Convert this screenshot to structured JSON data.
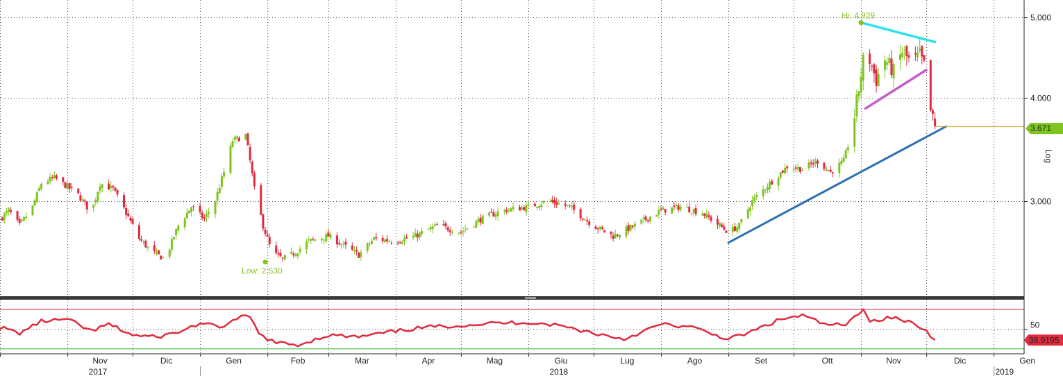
{
  "colors": {
    "up": "#7ec51f",
    "down": "#e02a3e",
    "grid": "#444444",
    "separator": "#3a3a3a",
    "flag_top": "#2fe0f0",
    "flag_bottom": "#c45cc8",
    "trendline": "#2d6fb3",
    "last_line": "#e0a030",
    "rsi": "#e02a3e",
    "rsi_upper": "#e02a3e",
    "rsi_lower": "#2fbf2f",
    "rsi_fill": "#f3b5b5"
  },
  "chart_data": [
    {
      "type": "candlestick",
      "ylim": [
        2.3,
        5.25
      ],
      "yscale": "log",
      "yticks": [
        "3.000",
        "4.000",
        "5.000"
      ],
      "ytick_values": [
        3.0,
        4.0,
        5.0
      ],
      "axis_label": "Log",
      "x_range": [
        "2017-10-01",
        "2019-01-15"
      ],
      "last_value": "3.671",
      "last_value_num": 3.671,
      "high_label": "Hi: 4.929",
      "high_point": {
        "date": "2018-11-01",
        "value": 4.929
      },
      "low_label": "Low: 2.530",
      "low_point": {
        "date": "2018-01-31",
        "value": 2.53
      },
      "close_path": [
        [
          "2017-10-01",
          2.85
        ],
        [
          "2017-10-05",
          2.92
        ],
        [
          "2017-10-10",
          2.8
        ],
        [
          "2017-10-16",
          2.95
        ],
        [
          "2017-10-20",
          3.15
        ],
        [
          "2017-10-26",
          3.2
        ],
        [
          "2017-11-01",
          3.12
        ],
        [
          "2017-11-06",
          3.05
        ],
        [
          "2017-11-12",
          2.9
        ],
        [
          "2017-11-16",
          3.15
        ],
        [
          "2017-11-22",
          3.1
        ],
        [
          "2017-11-28",
          2.9
        ],
        [
          "2017-12-04",
          2.7
        ],
        [
          "2017-12-10",
          2.6
        ],
        [
          "2017-12-16",
          2.55
        ],
        [
          "2017-12-22",
          2.8
        ],
        [
          "2017-12-28",
          2.95
        ],
        [
          "2018-01-03",
          2.85
        ],
        [
          "2018-01-08",
          3.0
        ],
        [
          "2018-01-12",
          3.25
        ],
        [
          "2018-01-16",
          3.55
        ],
        [
          "2018-01-22",
          3.6
        ],
        [
          "2018-01-26",
          3.1
        ],
        [
          "2018-01-30",
          2.8
        ],
        [
          "2018-02-03",
          2.6
        ],
        [
          "2018-02-08",
          2.55
        ],
        [
          "2018-02-14",
          2.6
        ],
        [
          "2018-02-20",
          2.68
        ],
        [
          "2018-03-01",
          2.72
        ],
        [
          "2018-03-08",
          2.65
        ],
        [
          "2018-03-15",
          2.58
        ],
        [
          "2018-03-22",
          2.7
        ],
        [
          "2018-04-01",
          2.68
        ],
        [
          "2018-04-10",
          2.72
        ],
        [
          "2018-04-20",
          2.8
        ],
        [
          "2018-05-01",
          2.75
        ],
        [
          "2018-05-10",
          2.85
        ],
        [
          "2018-05-20",
          2.92
        ],
        [
          "2018-06-01",
          2.95
        ],
        [
          "2018-06-10",
          3.0
        ],
        [
          "2018-06-20",
          2.95
        ],
        [
          "2018-07-01",
          2.8
        ],
        [
          "2018-07-10",
          2.72
        ],
        [
          "2018-07-20",
          2.8
        ],
        [
          "2018-08-01",
          2.92
        ],
        [
          "2018-08-10",
          2.95
        ],
        [
          "2018-08-20",
          2.9
        ],
        [
          "2018-09-01",
          2.75
        ],
        [
          "2018-09-06",
          2.8
        ],
        [
          "2018-09-12",
          3.0
        ],
        [
          "2018-09-20",
          3.15
        ],
        [
          "2018-09-28",
          3.3
        ],
        [
          "2018-10-05",
          3.28
        ],
        [
          "2018-10-12",
          3.35
        ],
        [
          "2018-10-18",
          3.25
        ],
        [
          "2018-10-24",
          3.35
        ],
        [
          "2018-10-28",
          3.65
        ],
        [
          "2018-10-31",
          4.1
        ],
        [
          "2018-11-03",
          4.6
        ],
        [
          "2018-11-08",
          4.2
        ],
        [
          "2018-11-12",
          4.45
        ],
        [
          "2018-11-16",
          4.3
        ],
        [
          "2018-11-20",
          4.55
        ],
        [
          "2018-11-24",
          4.4
        ],
        [
          "2018-11-28",
          4.5
        ],
        [
          "2018-12-01",
          4.3
        ],
        [
          "2018-12-03",
          3.85
        ],
        [
          "2018-12-05",
          3.67
        ]
      ]
    },
    {
      "type": "line",
      "ylim": [
        25,
        80
      ],
      "ytick": "50",
      "ytick_value": 50,
      "upper_level": 70,
      "lower_level": 30,
      "last_value": "38.9195",
      "last_value_num": 38.92,
      "x": [
        "2017-10-01",
        "2017-10-10",
        "2017-10-20",
        "2017-11-01",
        "2017-11-12",
        "2017-11-20",
        "2017-12-01",
        "2017-12-12",
        "2017-12-22",
        "2018-01-01",
        "2018-01-10",
        "2018-01-20",
        "2018-01-24",
        "2018-01-28",
        "2018-02-05",
        "2018-02-15",
        "2018-03-01",
        "2018-03-15",
        "2018-04-01",
        "2018-04-15",
        "2018-05-01",
        "2018-05-15",
        "2018-06-01",
        "2018-06-15",
        "2018-07-01",
        "2018-07-15",
        "2018-08-01",
        "2018-08-15",
        "2018-09-01",
        "2018-09-10",
        "2018-09-25",
        "2018-10-05",
        "2018-10-15",
        "2018-10-25",
        "2018-10-31",
        "2018-11-02",
        "2018-11-05",
        "2018-11-15",
        "2018-11-25",
        "2018-12-01",
        "2018-12-05"
      ],
      "y": [
        52,
        46,
        58,
        60,
        48,
        55,
        44,
        42,
        47,
        56,
        52,
        62,
        63,
        45,
        36,
        34,
        44,
        42,
        48,
        52,
        54,
        56,
        57,
        54,
        46,
        40,
        55,
        52,
        40,
        46,
        60,
        64,
        55,
        54,
        66,
        72,
        58,
        62,
        56,
        48,
        39
      ]
    }
  ],
  "x_axis": {
    "months": [
      {
        "label": "Nov",
        "date": "2017-11-01"
      },
      {
        "label": "Dic",
        "date": "2017-12-01"
      },
      {
        "label": "Gen",
        "date": "2018-01-01"
      },
      {
        "label": "Feb",
        "date": "2018-02-01"
      },
      {
        "label": "Mar",
        "date": "2018-03-01"
      },
      {
        "label": "Apr",
        "date": "2018-04-01"
      },
      {
        "label": "Mag",
        "date": "2018-05-01"
      },
      {
        "label": "Giu",
        "date": "2018-06-01"
      },
      {
        "label": "Lug",
        "date": "2018-07-01"
      },
      {
        "label": "Ago",
        "date": "2018-08-01"
      },
      {
        "label": "Set",
        "date": "2018-09-01"
      },
      {
        "label": "Ott",
        "date": "2018-10-01"
      },
      {
        "label": "Nov",
        "date": "2018-11-01"
      },
      {
        "label": "Dic",
        "date": "2018-12-01"
      },
      {
        "label": "Gen",
        "date": "2019-01-01"
      }
    ],
    "years": [
      {
        "label": "2017",
        "date": "2017-11-15"
      },
      {
        "label": "2018",
        "date": "2018-06-15"
      },
      {
        "label": "2019",
        "date": "2019-01-06"
      }
    ]
  },
  "annotations": {
    "flag_top": [
      [
        "2018-11-01",
        4.93
      ],
      [
        "2018-12-05",
        4.67
      ]
    ],
    "flag_bottom": [
      [
        "2018-11-03",
        3.88
      ],
      [
        "2018-12-01",
        4.32
      ]
    ],
    "trendline": [
      [
        "2018-09-01",
        2.67
      ],
      [
        "2018-12-10",
        3.69
      ]
    ],
    "last_line": [
      [
        "2018-12-05",
        3.69
      ],
      [
        "2019-01-15",
        3.69
      ]
    ]
  }
}
